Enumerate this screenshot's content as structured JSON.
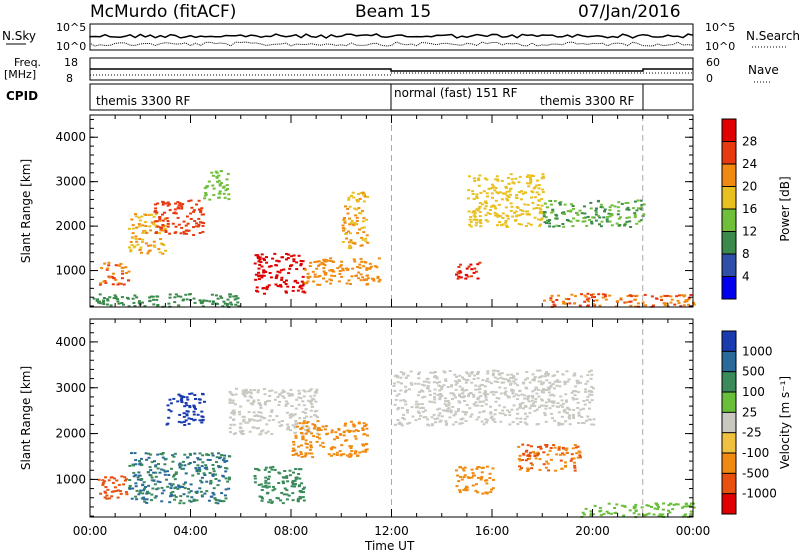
{
  "header": {
    "radar": "McMurdo (fitACF)",
    "beam": "Beam 15",
    "date": "07/Jan/2016"
  },
  "top_panels": {
    "nsky_label": "N.Sky",
    "nsearch_label": "N.Search",
    "noise_ticks": [
      "10^5",
      "10^0"
    ],
    "freq_label": "Freq.",
    "freq_unit": "[MHz]",
    "freq_ticks": [
      "18",
      "8"
    ],
    "nave_label": "Nave",
    "nave_ticks": [
      "60",
      "0"
    ],
    "cpid_label": "CPID",
    "cpid_segments": [
      "themis 3300 RF",
      "normal (fast) 151 RF",
      "themis 3300 RF"
    ]
  },
  "colors": {
    "power": [
      "#0000ee",
      "#2f4fa8",
      "#3b8a4c",
      "#6fbf3a",
      "#e8c020",
      "#f08a10",
      "#e83a10",
      "#e00000"
    ],
    "velocity": [
      "#1a3bb0",
      "#2a6a9a",
      "#3a8a5a",
      "#6abf3a",
      "#c8c8c0",
      "#f0c040",
      "#f08a10",
      "#e85010",
      "#e00000"
    ],
    "ground_scatter": "#c0c0b8"
  },
  "chart_data": [
    {
      "type": "heatmap",
      "title": "Power",
      "xlabel": "Time UT",
      "ylabel": "Slant Range [km]",
      "x_ticks": [
        "00:00",
        "04:00",
        "08:00",
        "12:00",
        "16:00",
        "20:00",
        "00:00"
      ],
      "x_range_hours": [
        0,
        24
      ],
      "y_ticks": [
        "1000",
        "2000",
        "3000",
        "4000"
      ],
      "y_range_km": [
        180,
        4500
      ],
      "dashed_markers_hours": [
        12,
        22
      ],
      "colorbar": {
        "label": "Power [dB]",
        "ticks": [
          "4",
          "8",
          "12",
          "16",
          "20",
          "24",
          "28"
        ],
        "range": [
          0,
          32
        ]
      },
      "regions": [
        {
          "t0": 0.3,
          "t1": 1.5,
          "r0": 700,
          "r1": 1200,
          "value": 24
        },
        {
          "t0": 1.5,
          "t1": 3.0,
          "r0": 1400,
          "r1": 2300,
          "value": 20
        },
        {
          "t0": 2.5,
          "t1": 4.5,
          "r0": 1800,
          "r1": 2600,
          "value": 26
        },
        {
          "t0": 4.5,
          "t1": 5.5,
          "r0": 2600,
          "r1": 3300,
          "value": 14
        },
        {
          "t0": 6.5,
          "t1": 8.5,
          "r0": 500,
          "r1": 1400,
          "value": 30
        },
        {
          "t0": 8.5,
          "t1": 11.5,
          "r0": 700,
          "r1": 1300,
          "value": 22
        },
        {
          "t0": 10.0,
          "t1": 11.0,
          "r0": 1500,
          "r1": 2800,
          "value": 20
        },
        {
          "t0": 14.5,
          "t1": 15.5,
          "r0": 800,
          "r1": 1200,
          "value": 28
        },
        {
          "t0": 15.0,
          "t1": 18.0,
          "r0": 2000,
          "r1": 3200,
          "value": 18
        },
        {
          "t0": 18.0,
          "t1": 22.0,
          "r0": 2000,
          "r1": 2600,
          "value": 12
        },
        {
          "t0": 18.0,
          "t1": 24.0,
          "r0": 200,
          "r1": 500,
          "value": 24
        },
        {
          "t0": 0.0,
          "t1": 6.0,
          "r0": 200,
          "r1": 500,
          "value": 10
        }
      ]
    },
    {
      "type": "heatmap",
      "title": "Velocity",
      "xlabel": "Time UT",
      "ylabel": "Slant Range [km]",
      "x_ticks": [
        "00:00",
        "04:00",
        "08:00",
        "12:00",
        "16:00",
        "20:00",
        "00:00"
      ],
      "x_range_hours": [
        0,
        24
      ],
      "y_ticks": [
        "1000",
        "2000",
        "3000",
        "4000"
      ],
      "y_range_km": [
        180,
        4500
      ],
      "dashed_markers_hours": [
        12,
        22
      ],
      "colorbar": {
        "label": "Velocity [m s⁻¹]",
        "ticks": [
          "1000",
          "500",
          "100",
          "25",
          "-25",
          "-100",
          "-500",
          "-1000"
        ]
      },
      "regions": [
        {
          "t0": 0.3,
          "t1": 1.5,
          "r0": 600,
          "r1": 1100,
          "value": -500
        },
        {
          "t0": 1.5,
          "t1": 5.5,
          "r0": 500,
          "r1": 1600,
          "value": 300
        },
        {
          "t0": 3.0,
          "t1": 4.5,
          "r0": 2200,
          "r1": 2900,
          "value": 800
        },
        {
          "t0": 5.5,
          "t1": 9.0,
          "r0": 2000,
          "r1": 3000,
          "value": 0
        },
        {
          "t0": 6.5,
          "t1": 8.5,
          "r0": 500,
          "r1": 1300,
          "value": 200
        },
        {
          "t0": 8.0,
          "t1": 11.0,
          "r0": 1500,
          "r1": 2300,
          "value": -200
        },
        {
          "t0": 12.0,
          "t1": 20.0,
          "r0": 2200,
          "r1": 3400,
          "value": 0
        },
        {
          "t0": 14.5,
          "t1": 16.0,
          "r0": 700,
          "r1": 1300,
          "value": -200
        },
        {
          "t0": 17.0,
          "t1": 19.5,
          "r0": 1200,
          "r1": 1800,
          "value": -300
        },
        {
          "t0": 19.5,
          "t1": 24.0,
          "r0": 200,
          "r1": 500,
          "value": 50
        }
      ]
    }
  ]
}
